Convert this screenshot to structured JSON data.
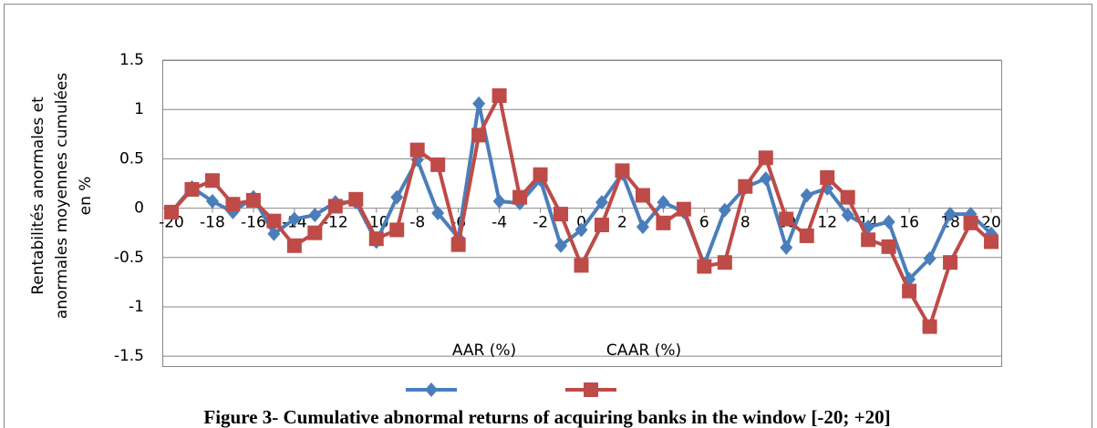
{
  "chart_data": {
    "type": "line",
    "y_label": [
      "Rentabilités anormales et",
      "anormales moyennes cumulées",
      "en %"
    ],
    "caption": "Figure 3- Cumulative abnormal returns of acquiring banks in the window [-20; +20]",
    "x": [
      -20,
      -19,
      -18,
      -17,
      -16,
      -15,
      -14,
      -13,
      -12,
      -11,
      -10,
      -9,
      -8,
      -7,
      -6,
      -5,
      -4,
      -3,
      -2,
      -1,
      0,
      1,
      2,
      3,
      4,
      5,
      6,
      7,
      8,
      9,
      10,
      11,
      12,
      13,
      14,
      15,
      16,
      17,
      18,
      19,
      20
    ],
    "xlim": [
      -20,
      20
    ],
    "xticks": [
      -20,
      -18,
      -16,
      -14,
      -12,
      -10,
      -8,
      -6,
      -4,
      -2,
      0,
      2,
      4,
      6,
      8,
      10,
      12,
      14,
      16,
      18,
      20
    ],
    "ylim": [
      -1.6,
      1.5
    ],
    "yticks": [
      -1.5,
      -1,
      -0.5,
      0,
      0.5,
      1,
      1.5
    ],
    "grid": true,
    "legend": "bottom",
    "series": [
      {
        "name": "AAR (%)",
        "color": "#4a7ebb",
        "marker": "diamond",
        "values": [
          -0.04,
          0.21,
          0.07,
          -0.04,
          0.11,
          -0.26,
          -0.11,
          -0.07,
          0.06,
          0.06,
          -0.34,
          0.11,
          0.49,
          -0.05,
          -0.3,
          1.06,
          0.07,
          0.05,
          0.29,
          -0.38,
          -0.22,
          0.06,
          0.35,
          -0.19,
          0.06,
          -0.04,
          -0.57,
          -0.02,
          0.21,
          0.3,
          -0.4,
          0.13,
          0.2,
          -0.07,
          -0.19,
          -0.14,
          -0.72,
          -0.51,
          -0.06,
          -0.06,
          -0.26
        ]
      },
      {
        "name": "CAAR (%)",
        "color": "#be4b48",
        "marker": "square",
        "values": [
          -0.04,
          0.19,
          0.28,
          0.04,
          0.08,
          -0.13,
          -0.38,
          -0.25,
          0.02,
          0.09,
          -0.31,
          -0.22,
          0.59,
          0.44,
          -0.37,
          0.74,
          1.14,
          0.11,
          0.34,
          -0.06,
          -0.58,
          -0.17,
          0.38,
          0.13,
          -0.15,
          -0.01,
          -0.59,
          -0.55,
          0.22,
          0.51,
          -0.11,
          -0.28,
          0.31,
          0.11,
          -0.32,
          -0.39,
          -0.84,
          -1.2,
          -0.55,
          -0.15,
          -0.34
        ]
      }
    ]
  }
}
